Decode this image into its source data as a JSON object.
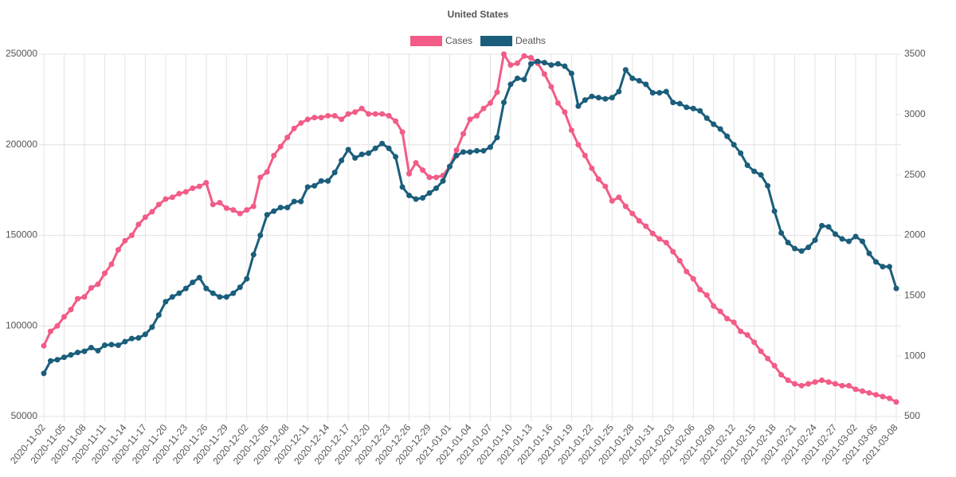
{
  "chart_data": {
    "type": "line",
    "title": "United States",
    "legend": "top",
    "grid": true,
    "categories": [
      "2020-11-02",
      null,
      null,
      "2020-11-05",
      null,
      null,
      "2020-11-08",
      null,
      null,
      "2020-11-11",
      null,
      null,
      "2020-11-14",
      null,
      null,
      "2020-11-17",
      null,
      null,
      "2020-11-20",
      null,
      null,
      "2020-11-23",
      null,
      null,
      "2020-11-26",
      null,
      null,
      "2020-11-29",
      null,
      null,
      "2020-12-02",
      null,
      null,
      "2020-12-05",
      null,
      null,
      "2020-12-08",
      null,
      null,
      "2020-12-11",
      null,
      null,
      "2020-12-14",
      null,
      null,
      "2020-12-17",
      null,
      null,
      "2020-12-20",
      null,
      null,
      "2020-12-23",
      null,
      null,
      "2020-12-26",
      null,
      null,
      "2020-12-29",
      null,
      null,
      "2021-01-01",
      null,
      null,
      "2021-01-04",
      null,
      null,
      "2021-01-07",
      null,
      null,
      "2021-01-10",
      null,
      null,
      "2021-01-13",
      null,
      null,
      "2021-01-16",
      null,
      null,
      "2021-01-19",
      null,
      null,
      "2021-01-22",
      null,
      null,
      "2021-01-25",
      null,
      null,
      "2021-01-28",
      null,
      null,
      "2021-01-31",
      null,
      null,
      "2021-02-03",
      null,
      null,
      "2021-02-06",
      null,
      null,
      "2021-02-09",
      null,
      null,
      "2021-02-12",
      null,
      null,
      "2021-02-15",
      null,
      null,
      "2021-02-18",
      null,
      null,
      "2021-02-21",
      null,
      null,
      "2021-02-24",
      null,
      null,
      "2021-02-27",
      null,
      null,
      "2021-03-02",
      null,
      null,
      "2021-03-05",
      null,
      null,
      "2021-03-08"
    ],
    "series": [
      {
        "name": "Cases",
        "color": "#f25c86",
        "axis": "y",
        "values": [
          89000,
          97000,
          100000,
          105000,
          109000,
          115000,
          116000,
          121000,
          123000,
          129000,
          134000,
          142000,
          147000,
          150000,
          156000,
          160000,
          163000,
          167000,
          170000,
          171000,
          173000,
          174000,
          176000,
          177000,
          179000,
          167000,
          168000,
          165000,
          164000,
          162000,
          164000,
          166000,
          182000,
          185000,
          194000,
          199000,
          204000,
          209000,
          212000,
          214000,
          215000,
          215000,
          216000,
          216000,
          214000,
          217000,
          218000,
          220000,
          217000,
          217000,
          217000,
          216000,
          213000,
          207000,
          184000,
          190000,
          186000,
          182000,
          182000,
          183000,
          188000,
          197000,
          206000,
          214000,
          216000,
          220000,
          223000,
          229000,
          250000,
          244000,
          245000,
          249000,
          248000,
          245000,
          239000,
          232000,
          223000,
          218000,
          208000,
          200000,
          194000,
          187000,
          181000,
          177000,
          169000,
          171000,
          166000,
          162000,
          158000,
          155000,
          151000,
          148000,
          146000,
          141000,
          136000,
          130000,
          126000,
          120000,
          117000,
          111000,
          108000,
          104000,
          102000,
          97000,
          95000,
          91000,
          86000,
          82000,
          78000,
          73000,
          70000,
          68000,
          67000,
          68000,
          69000,
          70000,
          69000,
          68000,
          67000,
          67000,
          65000,
          64000,
          63000,
          62000,
          61000,
          60000,
          58000
        ]
      },
      {
        "name": "Deaths",
        "color": "#1b5e7b",
        "axis": "y2",
        "values": [
          857,
          960,
          970,
          990,
          1010,
          1030,
          1040,
          1070,
          1045,
          1090,
          1095,
          1090,
          1120,
          1145,
          1150,
          1180,
          1240,
          1340,
          1450,
          1490,
          1520,
          1560,
          1610,
          1650,
          1560,
          1520,
          1490,
          1490,
          1520,
          1570,
          1640,
          1840,
          2000,
          2170,
          2200,
          2230,
          2230,
          2280,
          2280,
          2400,
          2410,
          2450,
          2450,
          2520,
          2620,
          2710,
          2640,
          2670,
          2680,
          2720,
          2760,
          2720,
          2650,
          2400,
          2330,
          2300,
          2310,
          2350,
          2390,
          2450,
          2570,
          2660,
          2690,
          2690,
          2700,
          2700,
          2730,
          2810,
          3100,
          3250,
          3300,
          3290,
          3420,
          3440,
          3430,
          3410,
          3420,
          3400,
          3340,
          3070,
          3120,
          3150,
          3140,
          3130,
          3140,
          3190,
          3370,
          3300,
          3280,
          3250,
          3180,
          3180,
          3190,
          3100,
          3090,
          3060,
          3050,
          3030,
          2970,
          2920,
          2880,
          2820,
          2750,
          2680,
          2580,
          2530,
          2500,
          2410,
          2200,
          2020,
          1940,
          1890,
          1870,
          1900,
          1960,
          2080,
          2070,
          2010,
          1970,
          1950,
          1990,
          1950,
          1850,
          1780,
          1740,
          1740,
          1560
        ]
      }
    ],
    "ylim": [
      50000,
      250000
    ],
    "yticks": [
      50000,
      100000,
      150000,
      200000,
      250000
    ],
    "y2lim": [
      500,
      3500
    ],
    "y2ticks": [
      500,
      1000,
      1500,
      2000,
      2500,
      3000,
      3500
    ]
  }
}
